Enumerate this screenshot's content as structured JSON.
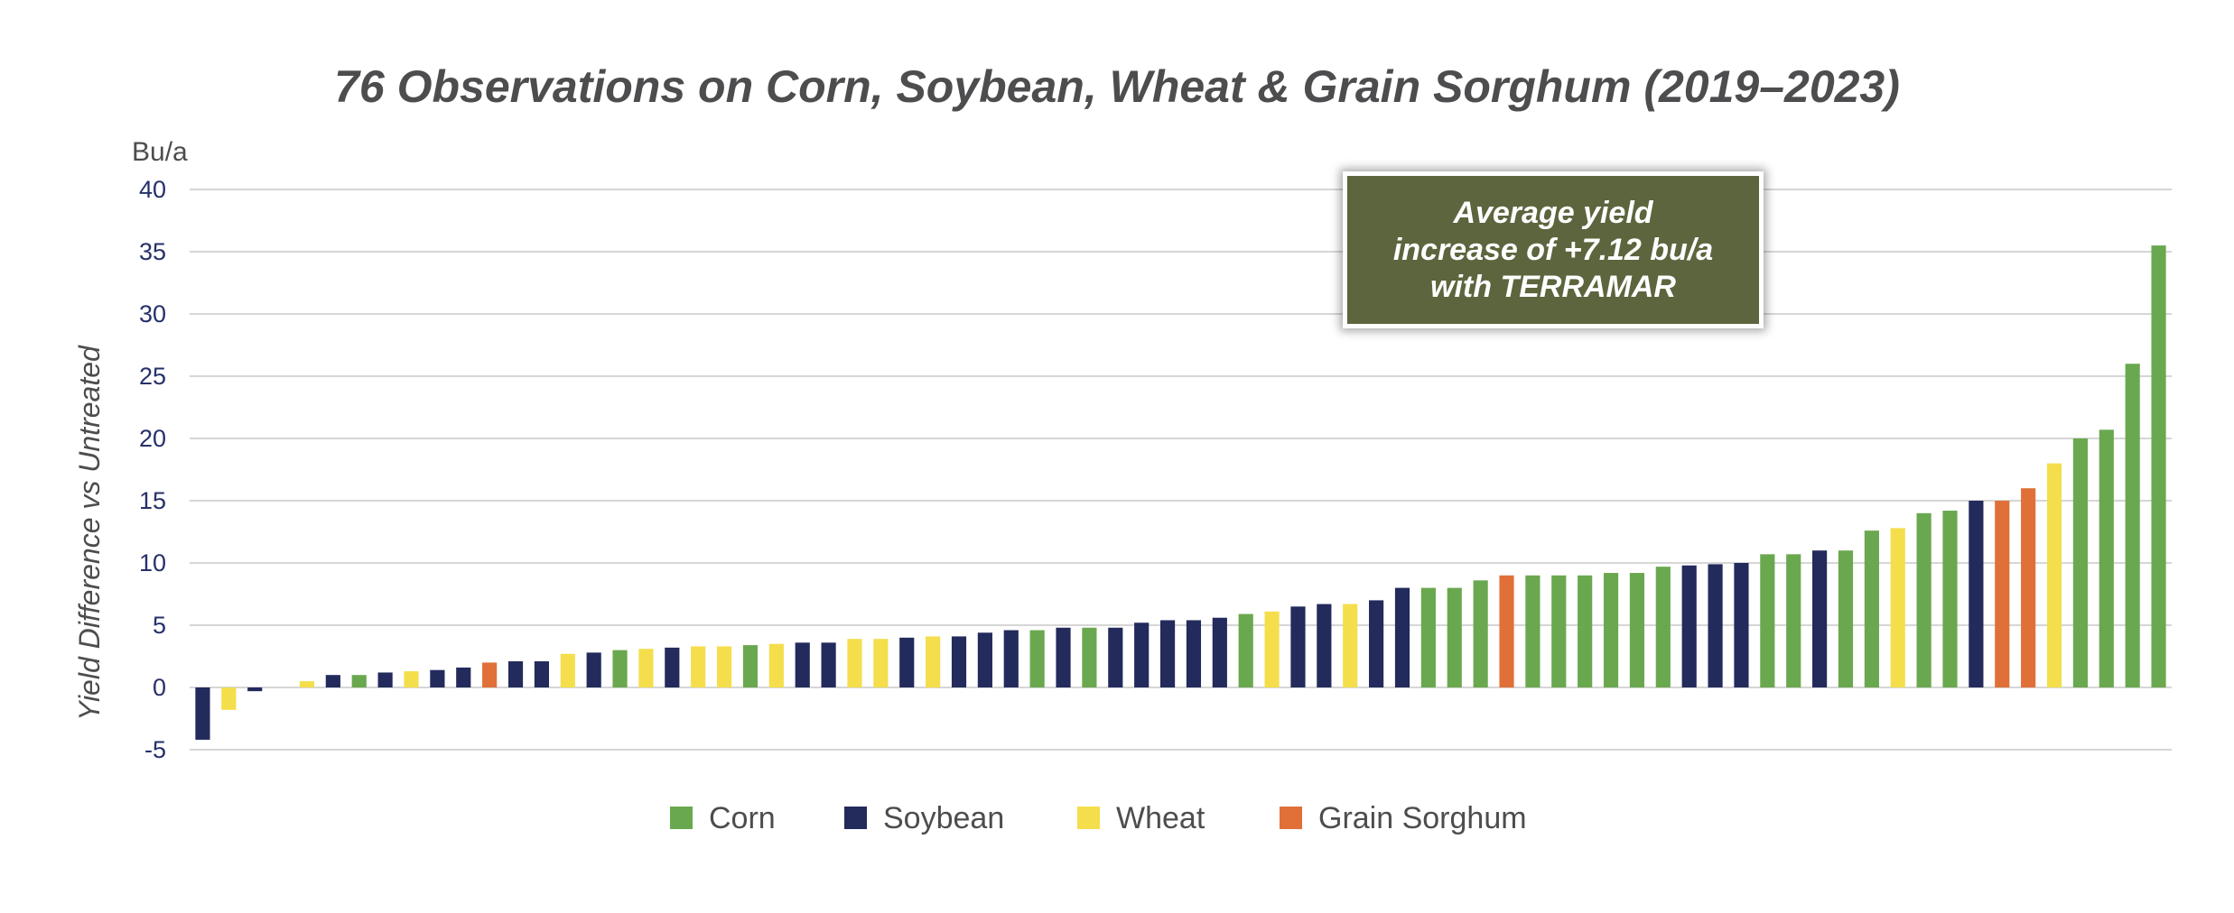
{
  "chart_data": {
    "type": "bar",
    "title": "76 Observations on Corn, Soybean, Wheat & Grain Sorghum (2019–2023)",
    "unit_label": "Bu/a",
    "ylabel": "Yield Difference vs Untreated",
    "xlabel": "",
    "ylim": [
      -5,
      40
    ],
    "yticks": [
      "40",
      "35",
      "30",
      "25",
      "20",
      "15",
      "10",
      "5",
      "0",
      "-5"
    ],
    "ytick_values": [
      40,
      35,
      30,
      25,
      20,
      15,
      10,
      5,
      0,
      -5
    ],
    "grid": true,
    "legend_position": "bottom",
    "series_colors": {
      "Corn": "#6aa84f",
      "Soybean": "#232a5c",
      "Wheat": "#f4de4c",
      "Grain Sorghum": "#e07038"
    },
    "legend": [
      "Corn",
      "Soybean",
      "Wheat",
      "Grain Sorghum"
    ],
    "bars": [
      {
        "crop": "Soybean",
        "value": -4.2
      },
      {
        "crop": "Wheat",
        "value": -1.8
      },
      {
        "crop": "Soybean",
        "value": -0.3
      },
      {
        "crop": "Wheat",
        "value": 0
      },
      {
        "crop": "Wheat",
        "value": 0.5
      },
      {
        "crop": "Soybean",
        "value": 1.0
      },
      {
        "crop": "Corn",
        "value": 1.0
      },
      {
        "crop": "Soybean",
        "value": 1.2
      },
      {
        "crop": "Wheat",
        "value": 1.3
      },
      {
        "crop": "Soybean",
        "value": 1.4
      },
      {
        "crop": "Soybean",
        "value": 1.6
      },
      {
        "crop": "Grain Sorghum",
        "value": 2.0
      },
      {
        "crop": "Soybean",
        "value": 2.1
      },
      {
        "crop": "Soybean",
        "value": 2.1
      },
      {
        "crop": "Wheat",
        "value": 2.7
      },
      {
        "crop": "Soybean",
        "value": 2.8
      },
      {
        "crop": "Corn",
        "value": 3.0
      },
      {
        "crop": "Wheat",
        "value": 3.1
      },
      {
        "crop": "Soybean",
        "value": 3.2
      },
      {
        "crop": "Wheat",
        "value": 3.3
      },
      {
        "crop": "Wheat",
        "value": 3.3
      },
      {
        "crop": "Corn",
        "value": 3.4
      },
      {
        "crop": "Wheat",
        "value": 3.5
      },
      {
        "crop": "Soybean",
        "value": 3.6
      },
      {
        "crop": "Soybean",
        "value": 3.6
      },
      {
        "crop": "Wheat",
        "value": 3.9
      },
      {
        "crop": "Wheat",
        "value": 3.9
      },
      {
        "crop": "Soybean",
        "value": 4.0
      },
      {
        "crop": "Wheat",
        "value": 4.1
      },
      {
        "crop": "Soybean",
        "value": 4.1
      },
      {
        "crop": "Soybean",
        "value": 4.4
      },
      {
        "crop": "Soybean",
        "value": 4.6
      },
      {
        "crop": "Corn",
        "value": 4.6
      },
      {
        "crop": "Soybean",
        "value": 4.8
      },
      {
        "crop": "Corn",
        "value": 4.8
      },
      {
        "crop": "Soybean",
        "value": 4.8
      },
      {
        "crop": "Soybean",
        "value": 5.2
      },
      {
        "crop": "Soybean",
        "value": 5.4
      },
      {
        "crop": "Soybean",
        "value": 5.4
      },
      {
        "crop": "Soybean",
        "value": 5.6
      },
      {
        "crop": "Corn",
        "value": 5.9
      },
      {
        "crop": "Wheat",
        "value": 6.1
      },
      {
        "crop": "Soybean",
        "value": 6.5
      },
      {
        "crop": "Soybean",
        "value": 6.7
      },
      {
        "crop": "Wheat",
        "value": 6.7
      },
      {
        "crop": "Soybean",
        "value": 7.0
      },
      {
        "crop": "Soybean",
        "value": 8.0
      },
      {
        "crop": "Corn",
        "value": 8.0
      },
      {
        "crop": "Corn",
        "value": 8.0
      },
      {
        "crop": "Corn",
        "value": 8.6
      },
      {
        "crop": "Grain Sorghum",
        "value": 9.0
      },
      {
        "crop": "Corn",
        "value": 9.0
      },
      {
        "crop": "Corn",
        "value": 9.0
      },
      {
        "crop": "Corn",
        "value": 9.0
      },
      {
        "crop": "Corn",
        "value": 9.2
      },
      {
        "crop": "Corn",
        "value": 9.2
      },
      {
        "crop": "Corn",
        "value": 9.7
      },
      {
        "crop": "Soybean",
        "value": 9.8
      },
      {
        "crop": "Soybean",
        "value": 9.9
      },
      {
        "crop": "Soybean",
        "value": 10.0
      },
      {
        "crop": "Corn",
        "value": 10.7
      },
      {
        "crop": "Corn",
        "value": 10.7
      },
      {
        "crop": "Soybean",
        "value": 11.0
      },
      {
        "crop": "Corn",
        "value": 11.0
      },
      {
        "crop": "Corn",
        "value": 12.6
      },
      {
        "crop": "Wheat",
        "value": 12.8
      },
      {
        "crop": "Corn",
        "value": 14.0
      },
      {
        "crop": "Corn",
        "value": 14.2
      },
      {
        "crop": "Soybean",
        "value": 15.0
      },
      {
        "crop": "Grain Sorghum",
        "value": 15.0
      },
      {
        "crop": "Grain Sorghum",
        "value": 16.0
      },
      {
        "crop": "Wheat",
        "value": 18.0
      },
      {
        "crop": "Corn",
        "value": 20.0
      },
      {
        "crop": "Corn",
        "value": 20.7
      },
      {
        "crop": "Corn",
        "value": 26.0
      },
      {
        "crop": "Corn",
        "value": 35.5
      }
    ]
  },
  "callout": {
    "lines": [
      "Average yield",
      "increase of +7.12 bu/a",
      "with TERRAMAR"
    ],
    "background": "#5c653d"
  }
}
